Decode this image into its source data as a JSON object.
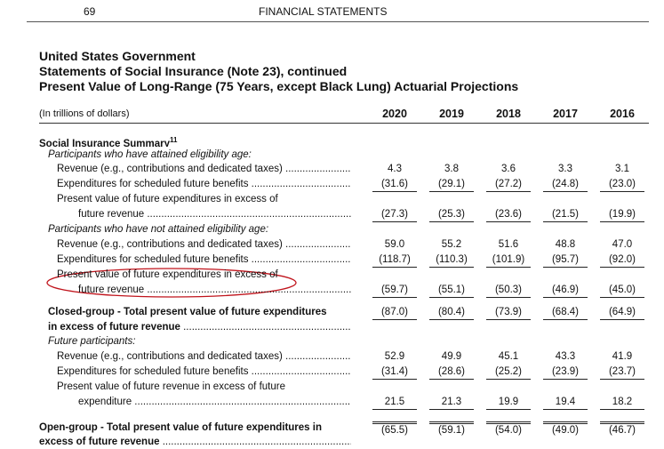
{
  "header": {
    "page_number": "69",
    "section": "FINANCIAL STATEMENTS"
  },
  "titles": [
    "United States Government",
    "Statements of Social Insurance (Note 23), continued",
    "Present Value of Long-Range (75 Years, except Black Lung) Actuarial Projections"
  ],
  "table": {
    "unit": "(In trillions of dollars)",
    "columns": [
      "2020",
      "2019",
      "2018",
      "2017",
      "2016"
    ],
    "rows": [
      {
        "label": "Social Insurance Summary",
        "note": "11"
      },
      {
        "label": "Participants who have attained eligibility age:"
      },
      {
        "label": "Revenue (e.g., contributions and dedicated taxes)",
        "values": [
          "4.3",
          "3.8",
          "3.6",
          "3.3",
          "3.1"
        ]
      },
      {
        "label": "Expenditures for scheduled future benefits",
        "values": [
          "(31.6)",
          "(29.1)",
          "(27.2)",
          "(24.8)",
          "(23.0)"
        ]
      },
      {
        "label": "Present value of future expenditures in excess of"
      },
      {
        "label": "future revenue",
        "values": [
          "(27.3)",
          "(25.3)",
          "(23.6)",
          "(21.5)",
          "(19.9)"
        ]
      },
      {
        "label": "Participants who have not attained eligibility age:"
      },
      {
        "label": "Revenue (e.g., contributions and dedicated taxes)",
        "values": [
          "59.0",
          "55.2",
          "51.6",
          "48.8",
          "47.0"
        ]
      },
      {
        "label": "Expenditures for scheduled future benefits",
        "values": [
          "(118.7)",
          "(110.3)",
          "(101.9)",
          "(95.7)",
          "(92.0)"
        ]
      },
      {
        "label": "Present value of future expenditures in excess of"
      },
      {
        "label": "future revenue",
        "values": [
          "(59.7)",
          "(55.1)",
          "(50.3)",
          "(46.9)",
          "(45.0)"
        ]
      },
      {
        "label": "Closed-group - Total present value of future expenditures",
        "values": [
          "(87.0)",
          "(80.4)",
          "(73.9)",
          "(68.4)",
          "(64.9)"
        ]
      },
      {
        "label": "in excess of future revenue"
      },
      {
        "label": "Future participants:"
      },
      {
        "label": "Revenue (e.g., contributions and dedicated taxes)",
        "values": [
          "52.9",
          "49.9",
          "45.1",
          "43.3",
          "41.9"
        ]
      },
      {
        "label": "Expenditures for scheduled future benefits",
        "values": [
          "(31.4)",
          "(28.6)",
          "(25.2)",
          "(23.9)",
          "(23.7)"
        ]
      },
      {
        "label": "Present value of future revenue in excess of future"
      },
      {
        "label": "expenditure",
        "values": [
          "21.5",
          "21.3",
          "19.9",
          "19.4",
          "18.2"
        ]
      },
      {
        "label": "Open-group - Total present value of future expenditures in",
        "values": [
          "(65.5)",
          "(59.1)",
          "(54.0)",
          "(49.0)",
          "(46.7)"
        ]
      },
      {
        "label": "excess of future revenue"
      }
    ]
  }
}
